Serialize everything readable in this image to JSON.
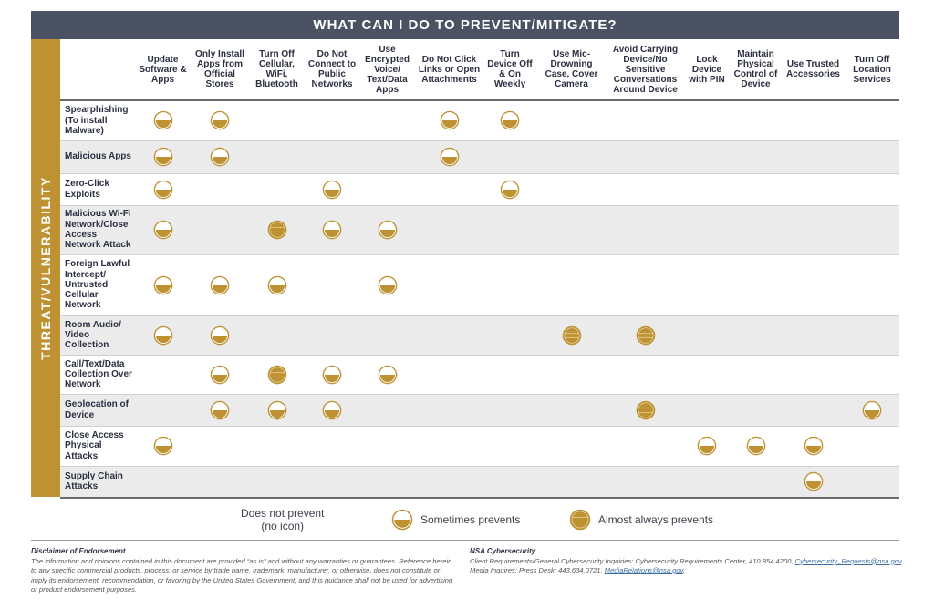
{
  "title": "WHAT CAN I DO TO PREVENT/MITIGATE?",
  "side_label": "THREAT/VULNERABILITY",
  "colors": {
    "header": "#4a5264",
    "accent_gold": "#be9232",
    "row_shade": "#ebebeb"
  },
  "columns": [
    "Update Software & Apps",
    "Only Install Apps from Official Stores",
    "Turn Off Cellular, WiFi, Bluetooth",
    "Do Not Connect to Public Networks",
    "Use Encrypted Voice/ Text/Data Apps",
    "Do Not Click Links or Open Attachments",
    "Turn Device Off & On Weekly",
    "Use Mic-Drowning Case, Cover Camera",
    "Avoid Carrying Device/No Sensitive Conversations Around Device",
    "Lock Device with PIN",
    "Maintain Physical Control of Device",
    "Use Trusted Accessories",
    "Turn Off Location Services"
  ],
  "rows": [
    {
      "threat": "Spearphishing (To install Malware)",
      "cells": [
        "S",
        "S",
        "",
        "",
        "",
        "S",
        "S",
        "",
        "",
        "",
        "",
        "",
        ""
      ]
    },
    {
      "threat": "Malicious Apps",
      "cells": [
        "S",
        "S",
        "",
        "",
        "",
        "S",
        "",
        "",
        "",
        "",
        "",
        "",
        ""
      ]
    },
    {
      "threat": "Zero-Click Exploits",
      "cells": [
        "S",
        "",
        "",
        "S",
        "",
        "",
        "S",
        "",
        "",
        "",
        "",
        "",
        ""
      ]
    },
    {
      "threat": "Malicious Wi-Fi Network/Close Access Network Attack",
      "cells": [
        "S",
        "",
        "A",
        "S",
        "S",
        "",
        "",
        "",
        "",
        "",
        "",
        "",
        ""
      ]
    },
    {
      "threat": "Foreign Lawful Intercept/ Untrusted Cellular Network",
      "cells": [
        "S",
        "S",
        "S",
        "",
        "S",
        "",
        "",
        "",
        "",
        "",
        "",
        "",
        ""
      ]
    },
    {
      "threat": "Room Audio/ Video Collection",
      "cells": [
        "S",
        "S",
        "",
        "",
        "",
        "",
        "",
        "A",
        "A",
        "",
        "",
        "",
        ""
      ]
    },
    {
      "threat": "Call/Text/Data Collection Over Network",
      "cells": [
        "",
        "S",
        "A",
        "S",
        "S",
        "",
        "",
        "",
        "",
        "",
        "",
        "",
        ""
      ]
    },
    {
      "threat": "Geolocation of Device",
      "cells": [
        "",
        "S",
        "S",
        "S",
        "",
        "",
        "",
        "",
        "A",
        "",
        "",
        "",
        "S"
      ]
    },
    {
      "threat": "Close Access Physical Attacks",
      "cells": [
        "S",
        "",
        "",
        "",
        "",
        "",
        "",
        "",
        "",
        "S",
        "S",
        "S",
        ""
      ]
    },
    {
      "threat": "Supply Chain Attacks",
      "cells": [
        "",
        "",
        "",
        "",
        "",
        "",
        "",
        "",
        "",
        "",
        "",
        "S",
        ""
      ]
    }
  ],
  "legend": {
    "none": "Does not prevent",
    "none_sub": "(no icon)",
    "sometimes": "Sometimes prevents",
    "almost": "Almost always prevents"
  },
  "footer": {
    "disclaimer_title": "Disclaimer of Endorsement",
    "disclaimer_text": "The information and opinions contained in this document are provided “as is” and without any warranties or guarantees. Reference herein to any specific commercial products, process, or service by trade name, trademark, manufacturer, or otherwise, does not constitute or imply its endorsement, recommendation, or favoring by the United States Government, and this guidance shall not be used for advertising or product endorsement purposes.",
    "contact_title": "NSA Cybersecurity",
    "contact_line1": "Client Requirements/General Cybersecurity Inquiries: Cybersecurity Requirements Center, 410.854.4200, ",
    "contact_email1": "Cybersecurity_Requests@nsa.gov",
    "contact_line2": "Media Inquires: Press Desk: 443.634.0721, ",
    "contact_email2": "MediaRelations@nsa.gov",
    "period": "."
  }
}
